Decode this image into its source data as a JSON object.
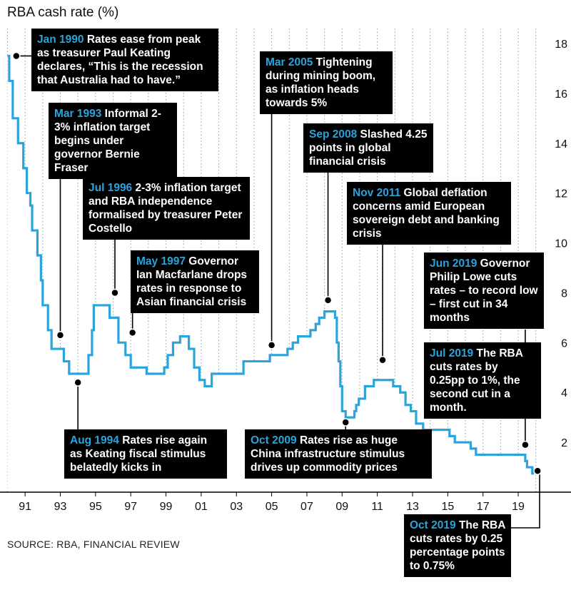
{
  "chart_data": {
    "type": "line",
    "title": "RBA cash rate (%)",
    "source": "SOURCE: RBA, FINANCIAL REVIEW",
    "xlabel": "",
    "ylabel": "",
    "xlim": [
      1989.9,
      2020.7
    ],
    "ylim": [
      0,
      18
    ],
    "y_ticks": [
      2,
      4,
      6,
      8,
      10,
      12,
      14,
      16,
      18
    ],
    "x_ticks": [
      {
        "year": 1991,
        "label": "91"
      },
      {
        "year": 1993,
        "label": "93"
      },
      {
        "year": 1995,
        "label": "95"
      },
      {
        "year": 1997,
        "label": "97"
      },
      {
        "year": 1999,
        "label": "99"
      },
      {
        "year": 2001,
        "label": "01"
      },
      {
        "year": 2003,
        "label": "03"
      },
      {
        "year": 2005,
        "label": "05"
      },
      {
        "year": 2007,
        "label": "07"
      },
      {
        "year": 2009,
        "label": "09"
      },
      {
        "year": 2011,
        "label": "11"
      },
      {
        "year": 2013,
        "label": "13"
      },
      {
        "year": 2015,
        "label": "15"
      },
      {
        "year": 2017,
        "label": "17"
      },
      {
        "year": 2019,
        "label": "19"
      }
    ],
    "grid": "vertical-dotted",
    "line_color": "#2aa4dc",
    "series": [
      {
        "points": [
          [
            1990.0,
            17.5
          ],
          [
            1990.1,
            16.5
          ],
          [
            1990.3,
            15.0
          ],
          [
            1990.6,
            14.0
          ],
          [
            1990.9,
            13.0
          ],
          [
            1991.1,
            12.0
          ],
          [
            1991.3,
            11.5
          ],
          [
            1991.4,
            10.5
          ],
          [
            1991.7,
            9.5
          ],
          [
            1991.9,
            8.5
          ],
          [
            1992.0,
            7.5
          ],
          [
            1992.3,
            6.5
          ],
          [
            1992.5,
            5.75
          ],
          [
            1993.2,
            5.25
          ],
          [
            1993.5,
            4.75
          ],
          [
            1994.6,
            5.5
          ],
          [
            1994.8,
            6.5
          ],
          [
            1994.9,
            7.5
          ],
          [
            1995.8,
            7.0
          ],
          [
            1996.3,
            6.0
          ],
          [
            1996.7,
            5.5
          ],
          [
            1997.0,
            5.0
          ],
          [
            1997.6,
            5.0
          ],
          [
            1997.9,
            4.75
          ],
          [
            1998.5,
            4.75
          ],
          [
            1998.9,
            5.0
          ],
          [
            1999.1,
            5.5
          ],
          [
            1999.4,
            6.0
          ],
          [
            1999.8,
            6.25
          ],
          [
            2000.3,
            5.75
          ],
          [
            2000.6,
            5.0
          ],
          [
            2000.9,
            4.5
          ],
          [
            2001.2,
            4.25
          ],
          [
            2001.6,
            4.75
          ],
          [
            2002.3,
            4.75
          ],
          [
            2002.6,
            4.75
          ],
          [
            2003.0,
            4.75
          ],
          [
            2003.4,
            5.25
          ],
          [
            2004.5,
            5.25
          ],
          [
            2004.9,
            5.5
          ],
          [
            2005.1,
            5.5
          ],
          [
            2005.9,
            5.75
          ],
          [
            2006.2,
            6.0
          ],
          [
            2006.5,
            6.25
          ],
          [
            2007.2,
            6.5
          ],
          [
            2007.5,
            6.75
          ],
          [
            2007.7,
            7.0
          ],
          [
            2008.0,
            7.25
          ],
          [
            2008.2,
            7.25
          ],
          [
            2008.6,
            7.0
          ],
          [
            2008.7,
            6.0
          ],
          [
            2008.8,
            5.25
          ],
          [
            2008.9,
            4.25
          ],
          [
            2009.0,
            3.25
          ],
          [
            2009.2,
            3.0
          ],
          [
            2009.7,
            3.25
          ],
          [
            2009.8,
            3.5
          ],
          [
            2009.95,
            3.75
          ],
          [
            2010.3,
            4.25
          ],
          [
            2010.8,
            4.5
          ],
          [
            2011.8,
            4.5
          ],
          [
            2011.9,
            4.25
          ],
          [
            2012.3,
            4.0
          ],
          [
            2012.6,
            3.5
          ],
          [
            2012.9,
            3.25
          ],
          [
            2013.2,
            2.75
          ],
          [
            2013.6,
            2.5
          ],
          [
            2015.1,
            2.25
          ],
          [
            2015.4,
            2.0
          ],
          [
            2016.3,
            1.75
          ],
          [
            2016.6,
            1.5
          ],
          [
            2019.4,
            1.25
          ],
          [
            2019.5,
            1.0
          ],
          [
            2019.8,
            0.75
          ],
          [
            2019.9,
            0.75
          ]
        ]
      }
    ]
  },
  "annotations": [
    {
      "date": "Jan 1990",
      "text": "Rates ease from peak as treasurer Paul Keating declares, “This is the recession that Australia had to have.”"
    },
    {
      "date": "Mar 1993",
      "text": "Informal 2-3% inflation target begins under governor Bernie Fraser"
    },
    {
      "date": "Jul 1996",
      "text": "2-3% inflation target and RBA independence formalised by treasurer Peter Costello"
    },
    {
      "date": "May 1997",
      "text": "Governor Ian Macfarlane drops rates in response to Asian financial crisis"
    },
    {
      "date": "Aug 1994",
      "text": "Rates rise again as Keating fiscal stimulus belatedly kicks in"
    },
    {
      "date": "Mar 2005",
      "text": "Tightening during mining boom, as inflation heads towards 5%"
    },
    {
      "date": "Sep 2008",
      "text": "Slashed 4.25 points in global financial crisis"
    },
    {
      "date": "Nov 2011",
      "text": "Global deflation concerns amid European sovereign debt and banking crisis"
    },
    {
      "date": "Oct 2009",
      "text": "Rates rise as huge China infrastructure stimulus drives up commodity prices"
    },
    {
      "date": "Jun 2019",
      "text": "Governor Philip Lowe cuts rates – to record low – first cut in 34 months"
    },
    {
      "date": "Jul 2019",
      "text": "The RBA cuts rates by 0.25pp to 1%, the second cut in a month."
    },
    {
      "date": "Oct 2019",
      "text": "The RBA cuts rates by 0.25 percentage points to 0.75%"
    }
  ]
}
